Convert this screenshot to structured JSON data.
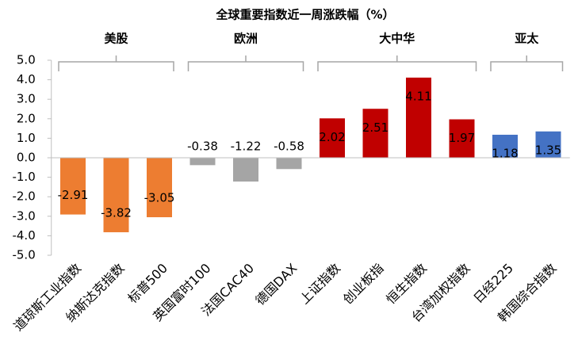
{
  "chart_data": {
    "type": "bar",
    "title": "全球重要指数近一周涨跌幅（%）",
    "categories": [
      "道琼斯工业指数",
      "纳斯达克指数",
      "标普500",
      "英国富时100",
      "法国CAC40",
      "德国DAX",
      "上证指数",
      "创业板指",
      "恒生指数",
      "台湾加权指数",
      "日经225",
      "韩国综合指数"
    ],
    "series": [
      {
        "name": "美股",
        "color": "#ED7D31",
        "values": [
          -2.91,
          -3.82,
          -3.05,
          null,
          null,
          null,
          null,
          null,
          null,
          null,
          null,
          null
        ]
      },
      {
        "name": "欧洲",
        "color": "#A5A5A5",
        "values": [
          null,
          null,
          null,
          -0.38,
          -1.22,
          -0.58,
          null,
          null,
          null,
          null,
          null,
          null
        ]
      },
      {
        "name": "大中华",
        "color": "#C00000",
        "values": [
          null,
          null,
          null,
          null,
          null,
          null,
          2.02,
          2.51,
          4.11,
          1.97,
          null,
          null
        ]
      },
      {
        "name": "亚太",
        "color": "#4472C4",
        "values": [
          null,
          null,
          null,
          null,
          null,
          null,
          null,
          null,
          null,
          null,
          1.18,
          1.35
        ]
      }
    ],
    "ylim": [
      -5,
      5
    ],
    "yticks": [
      {
        "value": -5,
        "label": "-5.0"
      },
      {
        "value": -4,
        "label": "-4.0"
      },
      {
        "value": -3,
        "label": "-3.0"
      },
      {
        "value": -2,
        "label": "-2.0"
      },
      {
        "value": -1,
        "label": "-1.0"
      },
      {
        "value": 0,
        "label": "0.0"
      },
      {
        "value": 1,
        "label": "1.0"
      },
      {
        "value": 2,
        "label": "2.0"
      },
      {
        "value": 3,
        "label": "3.0"
      },
      {
        "value": 4,
        "label": "4.0"
      },
      {
        "value": 5,
        "label": "5.0"
      }
    ]
  }
}
